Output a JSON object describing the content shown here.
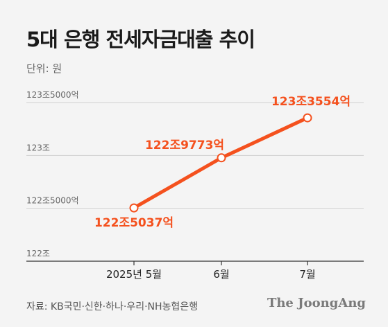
{
  "header": {
    "title": "5대 은행 전세자금대출 추이",
    "unit": "단위: 원"
  },
  "footer": {
    "source": "자료: KB국민·신한·하나·우리·NH농협은행",
    "brand": "The JoongAng"
  },
  "colors": {
    "series": "#f4511e",
    "label": "#f4511e",
    "grid": "#d0d0d0",
    "axis": "#333333",
    "tick_text": "#666666"
  },
  "chart_data": {
    "type": "line",
    "title": "5대 은행 전세자금대출 추이",
    "ylabel": "단위: 원",
    "ylim": [
      122,
      123.5
    ],
    "yticks": [
      {
        "value": 122,
        "label": "122조"
      },
      {
        "value": 122.5,
        "label": "122조5000억"
      },
      {
        "value": 123,
        "label": "123조"
      },
      {
        "value": 123.5,
        "label": "123조5000억"
      }
    ],
    "categories": [
      "2025년 5월",
      "6월",
      "7월"
    ],
    "series": [
      {
        "values": [
          122.5037,
          122.9773,
          123.3554
        ],
        "labels": [
          "122조5037억",
          "122조9773억",
          "123조3554억"
        ]
      }
    ],
    "grid": true
  }
}
